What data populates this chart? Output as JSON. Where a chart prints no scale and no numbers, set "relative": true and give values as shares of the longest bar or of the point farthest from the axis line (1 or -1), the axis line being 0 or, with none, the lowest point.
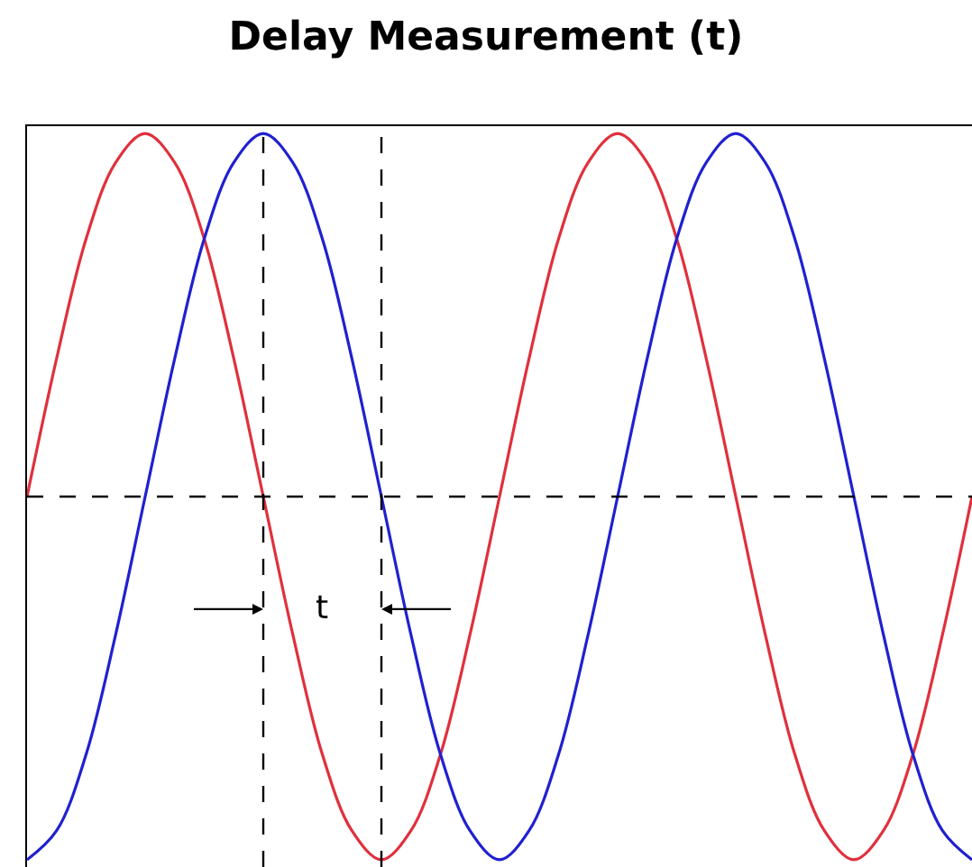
{
  "chart_data": {
    "type": "line",
    "title": "Delay Measurement (t)",
    "relative": true,
    "legend": false,
    "marker": "none",
    "line_style": "solid",
    "categories": [
      null,
      null,
      null,
      null,
      null,
      null,
      null,
      null,
      null,
      null,
      null,
      null,
      null,
      null,
      null,
      null,
      null,
      null,
      null,
      null,
      null,
      null,
      null,
      null,
      null,
      null,
      null,
      null,
      null,
      null,
      null,
      null,
      null
    ],
    "series": [
      {
        "color": "#e0303c",
        "values": [
          0,
          0.38,
          0.71,
          0.92,
          1,
          0.92,
          0.71,
          0.38,
          0,
          -0.38,
          -0.71,
          -0.92,
          -1,
          -0.92,
          -0.71,
          -0.38,
          0,
          0.38,
          0.71,
          0.92,
          1,
          0.92,
          0.71,
          0.38,
          0,
          -0.38,
          -0.71,
          -0.92,
          -1,
          -0.92,
          -0.71,
          -0.38,
          0
        ]
      },
      {
        "color": "#2020d0",
        "values": [
          -1,
          -0.92,
          -0.71,
          -0.38,
          0,
          0.38,
          0.71,
          0.92,
          1,
          0.92,
          0.71,
          0.38,
          0,
          -0.38,
          -0.71,
          -0.92,
          -1,
          -0.92,
          -0.71,
          -0.38,
          0,
          0.38,
          0.71,
          0.92,
          1,
          0.92,
          0.71,
          0.38,
          0,
          -0.38,
          -0.71,
          -0.92,
          -1
        ]
      }
    ],
    "ref_lines": [
      {
        "axis": "y",
        "value": 0,
        "color": "#000000",
        "line_style": "dashed"
      }
    ],
    "annotations": [
      "t"
    ]
  }
}
